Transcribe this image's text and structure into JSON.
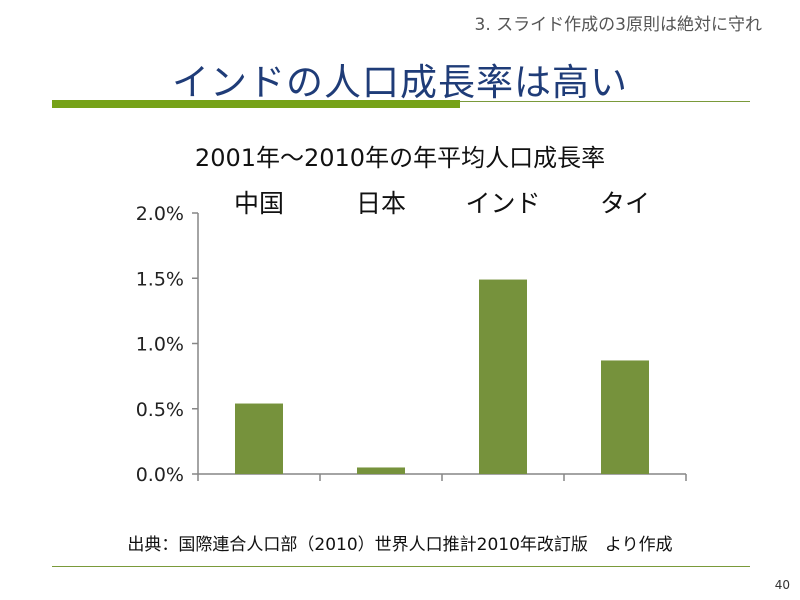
{
  "slide": {
    "section_label": "3. スライド作成の3原則は絶対に守れ",
    "title": "インドの人口成長率は高い",
    "source": "出典：国際連合人口部（2010）世界人口推計2010年改訂版　より作成",
    "page_number": "40"
  },
  "colors": {
    "title": "#1f3c78",
    "accent": "#76a218",
    "bar": "#76923c",
    "axis": "#868686"
  },
  "chart_data": {
    "type": "bar",
    "title": "2001年～2010年の年平均人口成長率",
    "categories": [
      "中国",
      "日本",
      "インド",
      "タイ"
    ],
    "values": [
      0.54,
      0.05,
      1.49,
      0.87
    ],
    "unit": "%",
    "ylim": [
      0,
      2.0
    ],
    "yticks": [
      "0.0%",
      "0.5%",
      "1.0%",
      "1.5%",
      "2.0%"
    ],
    "grid": false,
    "legend": "none",
    "category_labels_position": "top"
  }
}
